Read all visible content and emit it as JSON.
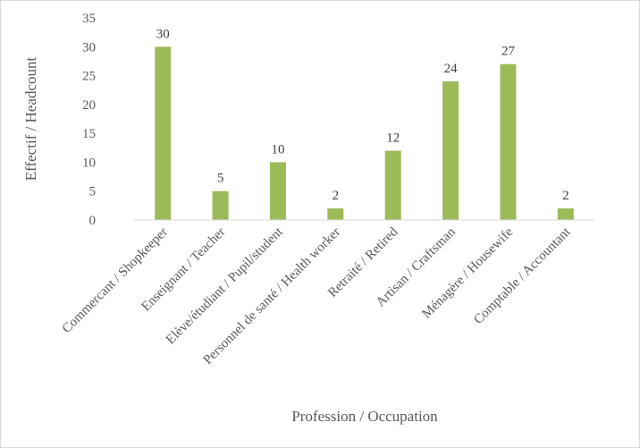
{
  "chart_data": {
    "type": "bar",
    "title": "",
    "xlabel": "Profession / Occupation",
    "ylabel": "Effectif / Headcount",
    "ylim": [
      0,
      35
    ],
    "ytick_step": 5,
    "grid": false,
    "bar_color": "#9bbb59",
    "categories": [
      "Commercant / Shopkeeper",
      "Enseignant / Teacher",
      "Elève/étudiant / Pupil/student",
      "Personnel de santé / Health worker",
      "Retraité / Retired",
      "Artisan / Craftsman",
      "Ménagère / Housewife",
      "Comptable / Accountant"
    ],
    "values": [
      30,
      5,
      10,
      2,
      12,
      24,
      27,
      2
    ]
  }
}
